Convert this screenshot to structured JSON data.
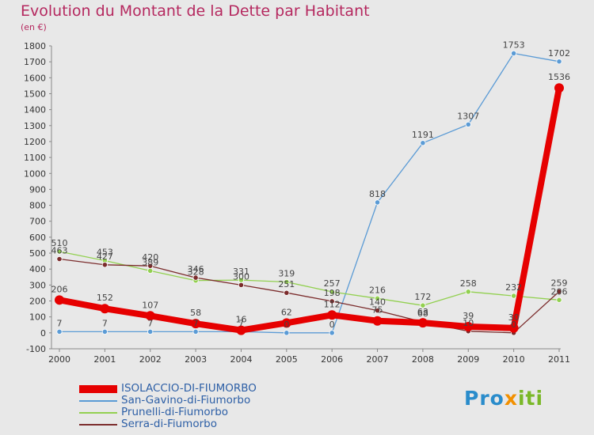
{
  "title": "Evolution du Montant de la Dette par Habitant",
  "subtitle": "(en €)",
  "brand": "Proxiti",
  "chart_data": {
    "type": "line",
    "x": [
      "2000",
      "2001",
      "2002",
      "2003",
      "2004",
      "2005",
      "2006",
      "2007",
      "2008",
      "2009",
      "2010",
      "2011"
    ],
    "ylim": [
      -100,
      1800
    ],
    "yticks": [
      -100,
      0,
      100,
      200,
      300,
      400,
      500,
      600,
      700,
      800,
      900,
      1000,
      1100,
      1200,
      1300,
      1400,
      1500,
      1600,
      1700,
      1800
    ],
    "grid": false,
    "legend_position": "bottom-left",
    "series": [
      {
        "name": "ISOLACCIO-DI-FIUMORBO",
        "color": "#e60000",
        "values": [
          206,
          152,
          107,
          58,
          16,
          62,
          112,
          75,
          63,
          39,
          30,
          1536
        ],
        "labels": [
          "206",
          "152",
          "107",
          "58",
          "16",
          "62",
          "112",
          "75",
          "63",
          "39",
          "30",
          "1536"
        ]
      },
      {
        "name": "San-Gavino-di-Fiumorbo",
        "color": "#5b9bd5",
        "values": [
          7,
          7,
          7,
          7,
          7,
          0,
          0,
          818,
          1191,
          1307,
          1753,
          1702
        ],
        "labels": [
          "7",
          "7",
          "7",
          "7",
          "7",
          "0",
          "0",
          "818",
          "1191",
          "1307",
          "1753",
          "1702"
        ]
      },
      {
        "name": "Prunelli-di-Fiumorbo",
        "color": "#92d050",
        "values": [
          510,
          453,
          389,
          328,
          331,
          319,
          257,
          216,
          172,
          258,
          232,
          206
        ],
        "labels": [
          "510",
          "453",
          "389",
          "328",
          "331",
          "319",
          "257",
          "216",
          "172",
          "258",
          "232",
          "206"
        ]
      },
      {
        "name": "Serra-di-Fiumorbo",
        "color": "#7b2c2c",
        "values": [
          463,
          427,
          420,
          346,
          300,
          251,
          198,
          140,
          68,
          10,
          0,
          259
        ],
        "labels": [
          "463",
          "427",
          "420",
          "346",
          "300",
          "251",
          "198",
          "140",
          "68",
          "10",
          "0",
          "259"
        ]
      }
    ]
  }
}
